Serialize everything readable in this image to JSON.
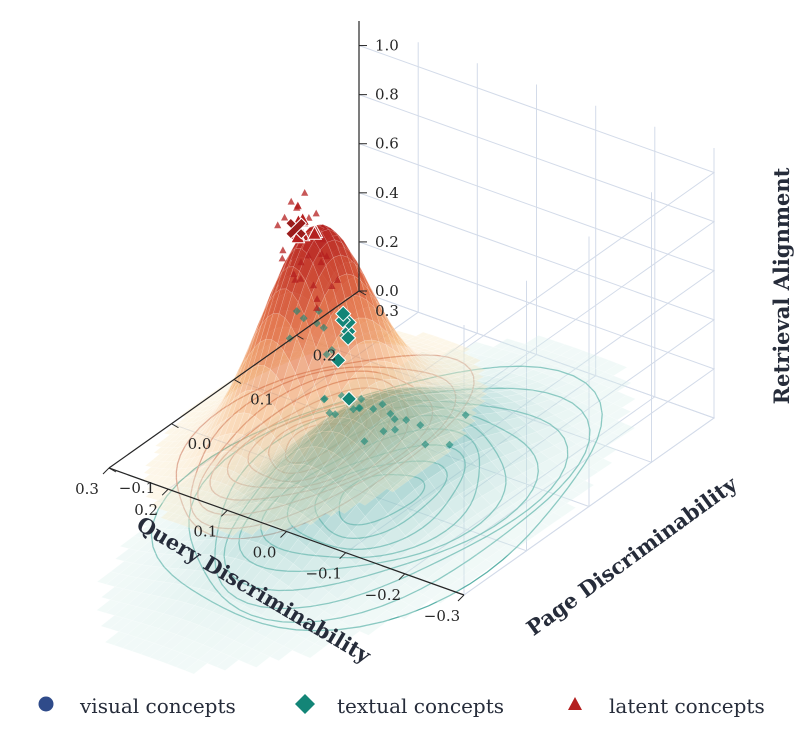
{
  "chart_data": {
    "type": "scatter",
    "kind": "3d-surface-with-scatter-and-contours",
    "xlabel": "Query Discriminability",
    "ylabel": "Page Discriminability",
    "zlabel": "Retrieval Alignment",
    "xticks": [
      "−0.3",
      "−0.2",
      "−0.1",
      "0.0",
      "0.1",
      "0.2",
      "0.3"
    ],
    "yticks": [
      "−0.1",
      "0.0",
      "0.1",
      "0.2",
      "0.3"
    ],
    "zticks": [
      "0.0",
      "0.2",
      "0.4",
      "0.6",
      "0.8",
      "1.0"
    ],
    "xlim": [
      -0.3,
      0.3
    ],
    "ylim": [
      -0.1,
      0.3
    ],
    "zlim": [
      0,
      1.1
    ],
    "grid": true,
    "legend_position": "bottom",
    "colors": {
      "visual": "#2f4b8a",
      "textual": "#138577",
      "latent": "#b41f1f"
    },
    "surfaces": [
      {
        "name": "textual concepts",
        "x0": -0.05,
        "y0": -0.02,
        "sx": 0.09,
        "sy": 0.13,
        "peak": 0.4,
        "colormap": "teal"
      },
      {
        "name": "latent concepts",
        "x0": 0.12,
        "y0": 0.06,
        "sx": 0.06,
        "sy": 0.07,
        "peak": 0.85,
        "colormap": "orange-red"
      }
    ],
    "series": [
      {
        "name": "visual concepts",
        "marker": "circle",
        "points": []
      },
      {
        "name": "textual concepts",
        "marker": "diamond",
        "points": [
          [
            -0.25,
            -0.05,
            0.6
          ],
          [
            -0.16,
            -0.06,
            0.52
          ],
          [
            -0.13,
            -0.05,
            0.48
          ],
          [
            -0.08,
            -0.06,
            0.5
          ],
          [
            -0.06,
            -0.05,
            0.46
          ],
          [
            -0.1,
            -0.07,
            0.4
          ],
          [
            -0.12,
            -0.04,
            0.41
          ],
          [
            -0.04,
            -0.06,
            0.44
          ],
          [
            -0.05,
            -0.03,
            0.42
          ],
          [
            -0.02,
            -0.05,
            0.41
          ],
          [
            -0.09,
            -0.03,
            0.36
          ],
          [
            -0.15,
            -0.02,
            0.34
          ],
          [
            -0.17,
            0.0,
            0.32
          ],
          [
            -0.07,
            0.0,
            0.36
          ],
          [
            0.0,
            -0.04,
            0.43
          ],
          [
            0.02,
            -0.02,
            0.38
          ],
          [
            -0.12,
            -0.06,
            0.55
          ],
          [
            -0.03,
            -0.04,
            0.47
          ],
          [
            -0.11,
            0.01,
            0.33
          ],
          [
            -0.01,
            0.01,
            0.35
          ],
          [
            0.1,
            0.0,
            0.52
          ],
          [
            0.12,
            0.03,
            0.56
          ],
          [
            0.05,
            0.02,
            0.48
          ],
          [
            0.14,
            0.06,
            0.46
          ],
          [
            0.08,
            0.04,
            0.4
          ],
          [
            0.16,
            0.1,
            0.35
          ],
          [
            0.18,
            0.13,
            0.26
          ],
          [
            0.22,
            0.16,
            0.24
          ],
          [
            0.2,
            0.18,
            0.12
          ],
          [
            -0.02,
            0.02,
            0.3
          ]
        ],
        "highlight": [
          [
            0.0,
            0.0,
            0.36
          ],
          [
            0.05,
            0.03,
            0.42
          ],
          [
            0.17,
            0.16,
            0.2
          ],
          [
            0.18,
            0.17,
            0.21
          ],
          [
            0.19,
            0.17,
            0.21
          ],
          [
            0.2,
            0.18,
            0.21
          ],
          [
            0.16,
            0.15,
            0.2
          ]
        ]
      },
      {
        "name": "latent concepts",
        "marker": "triangle",
        "points": [
          [
            -0.03,
            -0.08,
            0.9
          ],
          [
            -0.02,
            -0.07,
            0.91
          ],
          [
            0.03,
            -0.06,
            0.95
          ],
          [
            0.06,
            -0.05,
            0.97
          ],
          [
            0.08,
            -0.03,
            0.95
          ],
          [
            0.09,
            0.0,
            0.96
          ],
          [
            0.06,
            -0.02,
            0.9
          ],
          [
            0.05,
            -0.03,
            0.86
          ],
          [
            0.1,
            0.01,
            0.92
          ],
          [
            0.12,
            0.03,
            0.98
          ],
          [
            0.11,
            0.04,
            0.93
          ],
          [
            0.13,
            0.05,
            0.9
          ],
          [
            0.15,
            0.06,
            0.91
          ],
          [
            0.16,
            0.07,
            0.88
          ],
          [
            0.17,
            0.09,
            0.89
          ],
          [
            0.14,
            0.08,
            0.85
          ],
          [
            0.09,
            0.02,
            0.83
          ],
          [
            0.08,
            0.04,
            0.8
          ],
          [
            0.1,
            0.05,
            0.74
          ],
          [
            0.12,
            0.07,
            0.72
          ],
          [
            0.15,
            0.1,
            0.7
          ],
          [
            0.03,
            0.01,
            0.8
          ],
          [
            0.05,
            0.02,
            0.74
          ],
          [
            0.07,
            -0.02,
            0.82
          ],
          [
            0.14,
            0.04,
            0.97
          ],
          [
            0.11,
            -0.01,
            0.99
          ],
          [
            0.13,
            0.02,
            0.95
          ],
          [
            0.06,
            0.0,
            0.77
          ]
        ],
        "highlight": [
          [
            0.1,
            0.02,
            0.96
          ],
          [
            0.11,
            0.03,
            0.94
          ],
          [
            0.12,
            0.04,
            0.85
          ],
          [
            0.14,
            0.05,
            0.82
          ],
          [
            0.13,
            0.07,
            0.8
          ],
          [
            0.17,
            0.08,
            0.79
          ],
          [
            0.15,
            0.06,
            0.78
          ],
          [
            0.09,
            0.03,
            0.9
          ]
        ],
        "centroid": [
          0.1,
          0.01,
          0.95
        ]
      }
    ],
    "contours": [
      {
        "name": "textual concepts",
        "color": "#3fa49a",
        "x0": -0.05,
        "y0": 0.0,
        "sx": 0.09,
        "sy": 0.1,
        "levels": 9
      },
      {
        "name": "latent concepts",
        "color": "#c97a70",
        "x0": 0.11,
        "y0": 0.05,
        "sx": 0.06,
        "sy": 0.08,
        "levels": 8
      }
    ]
  },
  "legend": {
    "visual": "visual concepts",
    "textual": "textual concepts",
    "latent": "latent concepts"
  }
}
